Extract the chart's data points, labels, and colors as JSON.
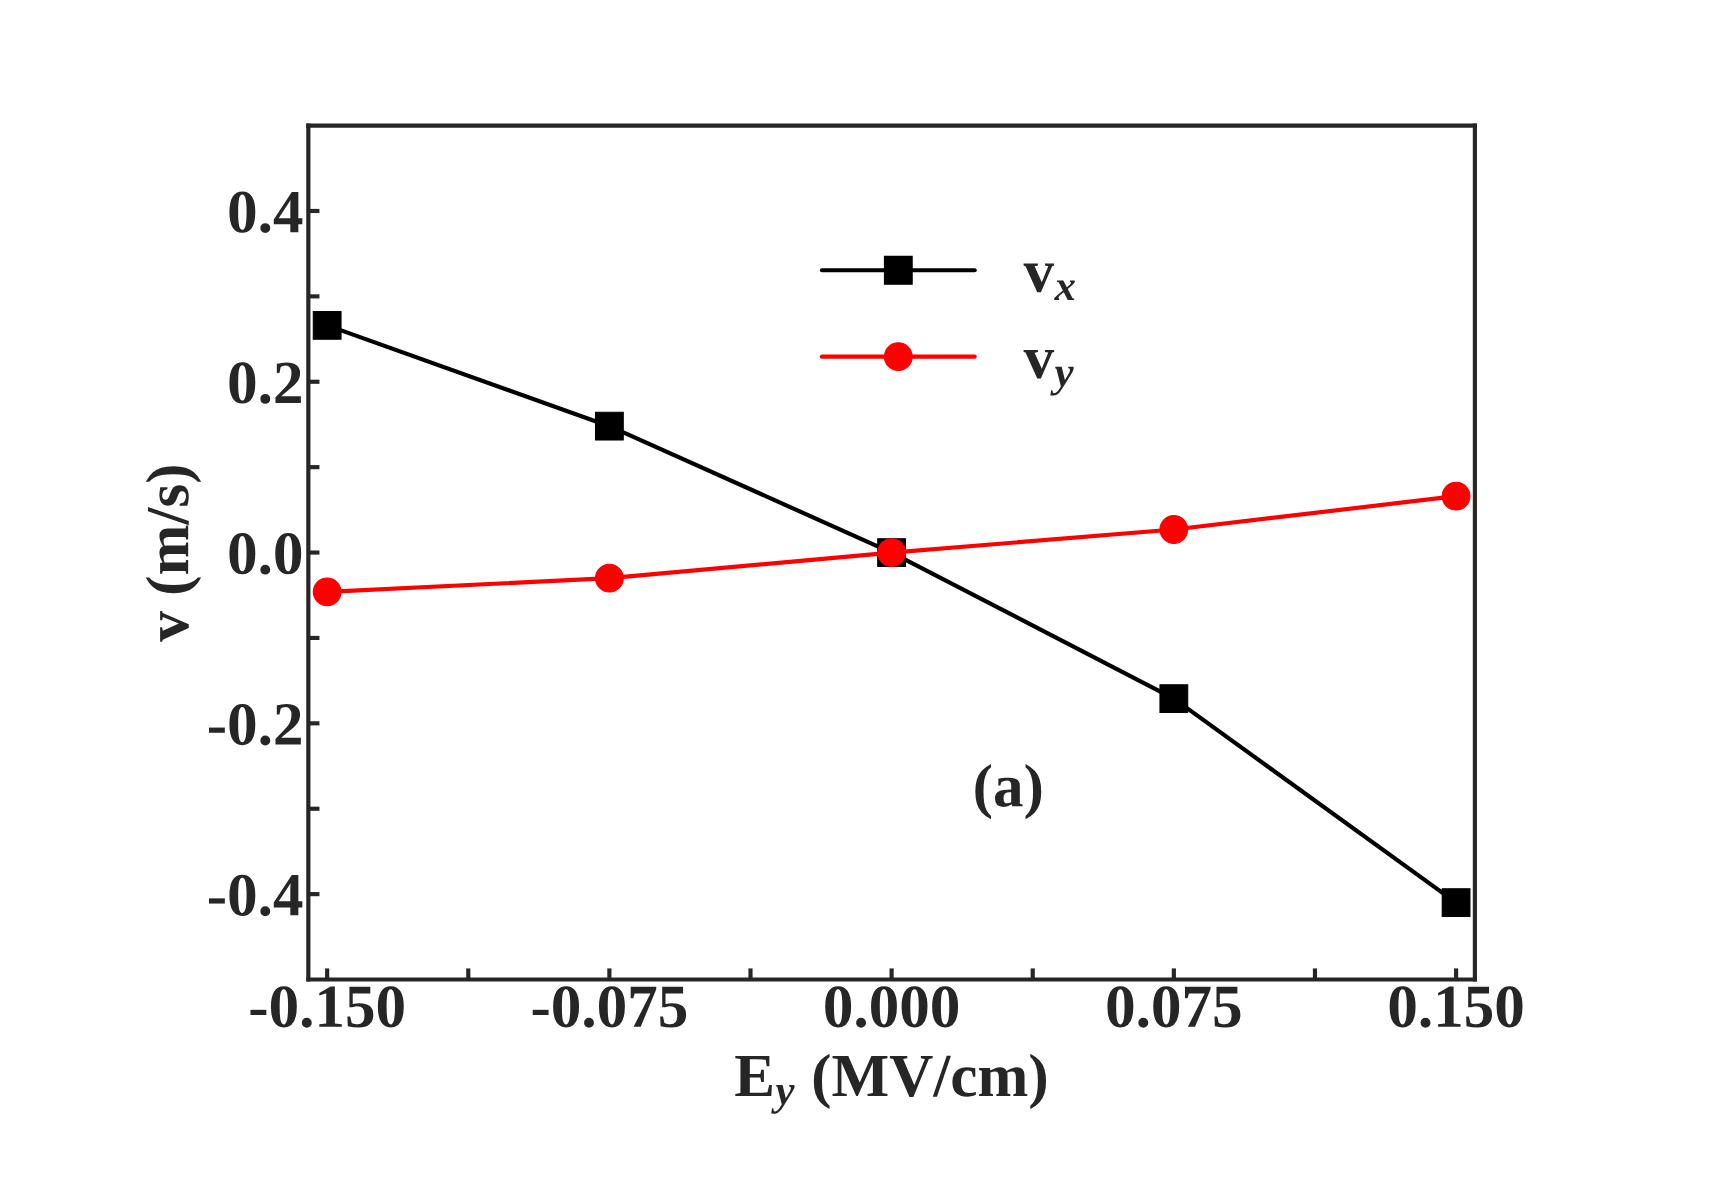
{
  "chart_data": {
    "type": "line",
    "xlabel": "E$_{y}$ (MV/cm)",
    "ylabel": "v (m/s)",
    "x": [
      -0.15,
      -0.075,
      0.0,
      0.075,
      0.15
    ],
    "series": [
      {
        "name": "v$_{x}$",
        "color": "#000000",
        "marker": "square",
        "values": [
          0.266,
          0.148,
          0.0,
          -0.171,
          -0.41
        ]
      },
      {
        "name": "v$_{y}$",
        "color": "#ff0000",
        "marker": "circle",
        "values": [
          -0.046,
          -0.03,
          0.0,
          0.027,
          0.066
        ]
      }
    ],
    "xlim": [
      -0.155,
      0.155
    ],
    "ylim": [
      -0.5,
      0.5
    ],
    "xticks": [
      {
        "value": -0.15,
        "label": "-0.150"
      },
      {
        "value": -0.1125,
        "label": null
      },
      {
        "value": -0.075,
        "label": "-0.075"
      },
      {
        "value": -0.0375,
        "label": null
      },
      {
        "value": 0.0,
        "label": "0.000"
      },
      {
        "value": 0.0375,
        "label": null
      },
      {
        "value": 0.075,
        "label": "0.075"
      },
      {
        "value": 0.1125,
        "label": null
      },
      {
        "value": 0.15,
        "label": "0.150"
      }
    ],
    "yticks": [
      {
        "value": -0.4,
        "label": "-0.4"
      },
      {
        "value": -0.3,
        "label": null
      },
      {
        "value": -0.2,
        "label": "-0.2"
      },
      {
        "value": -0.1,
        "label": null
      },
      {
        "value": 0.0,
        "label": "0.0"
      },
      {
        "value": 0.1,
        "label": null
      },
      {
        "value": 0.2,
        "label": "0.2"
      },
      {
        "value": 0.3,
        "label": null
      },
      {
        "value": 0.4,
        "label": "0.4"
      }
    ],
    "annotations": [
      "(a)"
    ],
    "legend": "top",
    "grid": false,
    "line_style": "solid"
  }
}
